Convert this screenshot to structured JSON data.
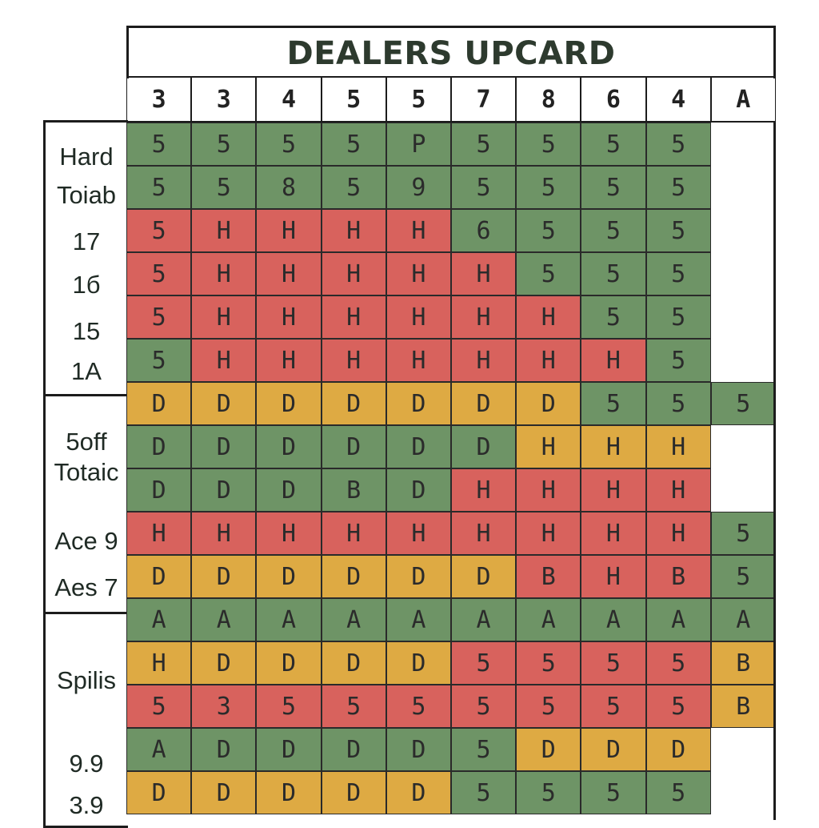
{
  "title": "DEALERS UPCARD",
  "columns": [
    "3",
    "3",
    "4",
    "5",
    "5",
    "7",
    "8",
    "6",
    "4",
    "A"
  ],
  "section_labels": {
    "hard_1": "Hard",
    "hard_2": "Toiab",
    "row_17": "17",
    "row_16": "1б",
    "row_15": "15",
    "row_1a": "1A",
    "soft_1": "5off",
    "soft_2": "Totaic",
    "ace9": "Ace 9",
    "ace7": "Aes 7",
    "splits": "Spilis",
    "p99": "9.9",
    "p39": "3.9"
  },
  "colors": {
    "green": "#6e9466",
    "red": "#d8625d",
    "yellow": "#deaa43"
  },
  "rows": [
    [
      [
        "g",
        "5"
      ],
      [
        "g",
        "5"
      ],
      [
        "g",
        "5"
      ],
      [
        "g",
        "5"
      ],
      [
        "g",
        "P"
      ],
      [
        "g",
        "5"
      ],
      [
        "g",
        "5"
      ],
      [
        "g",
        "5"
      ],
      [
        "g",
        "5"
      ],
      [
        "w",
        ""
      ]
    ],
    [
      [
        "g",
        "5"
      ],
      [
        "g",
        "5"
      ],
      [
        "g",
        "8"
      ],
      [
        "g",
        "5"
      ],
      [
        "g",
        "9"
      ],
      [
        "g",
        "5"
      ],
      [
        "g",
        "5"
      ],
      [
        "g",
        "5"
      ],
      [
        "g",
        "5"
      ],
      [
        "w",
        ""
      ]
    ],
    [
      [
        "r",
        "5"
      ],
      [
        "r",
        "H"
      ],
      [
        "r",
        "H"
      ],
      [
        "r",
        "H"
      ],
      [
        "r",
        "H"
      ],
      [
        "g",
        "6"
      ],
      [
        "g",
        "5"
      ],
      [
        "g",
        "5"
      ],
      [
        "g",
        "5"
      ],
      [
        "w",
        ""
      ]
    ],
    [
      [
        "r",
        "5"
      ],
      [
        "r",
        "H"
      ],
      [
        "r",
        "H"
      ],
      [
        "r",
        "H"
      ],
      [
        "r",
        "H"
      ],
      [
        "r",
        "H"
      ],
      [
        "g",
        "5"
      ],
      [
        "g",
        "5"
      ],
      [
        "g",
        "5"
      ],
      [
        "w",
        ""
      ]
    ],
    [
      [
        "r",
        "5"
      ],
      [
        "r",
        "H"
      ],
      [
        "r",
        "H"
      ],
      [
        "r",
        "H"
      ],
      [
        "r",
        "H"
      ],
      [
        "r",
        "H"
      ],
      [
        "r",
        "H"
      ],
      [
        "g",
        "5"
      ],
      [
        "g",
        "5"
      ],
      [
        "w",
        ""
      ]
    ],
    [
      [
        "g",
        "5"
      ],
      [
        "r",
        "H"
      ],
      [
        "r",
        "H"
      ],
      [
        "r",
        "H"
      ],
      [
        "r",
        "H"
      ],
      [
        "r",
        "H"
      ],
      [
        "r",
        "H"
      ],
      [
        "r",
        "H"
      ],
      [
        "g",
        "5"
      ],
      [
        "w",
        ""
      ]
    ],
    [
      [
        "y",
        "D"
      ],
      [
        "y",
        "D"
      ],
      [
        "y",
        "D"
      ],
      [
        "y",
        "D"
      ],
      [
        "y",
        "D"
      ],
      [
        "y",
        "D"
      ],
      [
        "y",
        "D"
      ],
      [
        "g",
        "5"
      ],
      [
        "g",
        "5"
      ],
      [
        "g",
        "5"
      ]
    ],
    [
      [
        "g",
        "D"
      ],
      [
        "g",
        "D"
      ],
      [
        "g",
        "D"
      ],
      [
        "g",
        "D"
      ],
      [
        "g",
        "D"
      ],
      [
        "g",
        "D"
      ],
      [
        "y",
        "H"
      ],
      [
        "y",
        "H"
      ],
      [
        "y",
        "H"
      ],
      [
        "w",
        ""
      ]
    ],
    [
      [
        "g",
        "D"
      ],
      [
        "g",
        "D"
      ],
      [
        "g",
        "D"
      ],
      [
        "g",
        "B"
      ],
      [
        "g",
        "D"
      ],
      [
        "r",
        "H"
      ],
      [
        "r",
        "H"
      ],
      [
        "r",
        "H"
      ],
      [
        "r",
        "H"
      ],
      [
        "w",
        ""
      ]
    ],
    [
      [
        "r",
        "H"
      ],
      [
        "r",
        "H"
      ],
      [
        "r",
        "H"
      ],
      [
        "r",
        "H"
      ],
      [
        "r",
        "H"
      ],
      [
        "r",
        "H"
      ],
      [
        "r",
        "H"
      ],
      [
        "r",
        "H"
      ],
      [
        "r",
        "H"
      ],
      [
        "g",
        "5"
      ]
    ],
    [
      [
        "y",
        "D"
      ],
      [
        "y",
        "D"
      ],
      [
        "y",
        "D"
      ],
      [
        "y",
        "D"
      ],
      [
        "y",
        "D"
      ],
      [
        "y",
        "D"
      ],
      [
        "r",
        "B"
      ],
      [
        "r",
        "H"
      ],
      [
        "r",
        "B"
      ],
      [
        "g",
        "5"
      ]
    ],
    [
      [
        "g",
        "A"
      ],
      [
        "g",
        "A"
      ],
      [
        "g",
        "A"
      ],
      [
        "g",
        "A"
      ],
      [
        "g",
        "A"
      ],
      [
        "g",
        "A"
      ],
      [
        "g",
        "A"
      ],
      [
        "g",
        "A"
      ],
      [
        "g",
        "A"
      ],
      [
        "g",
        "A"
      ]
    ],
    [
      [
        "y",
        "H"
      ],
      [
        "y",
        "D"
      ],
      [
        "y",
        "D"
      ],
      [
        "y",
        "D"
      ],
      [
        "y",
        "D"
      ],
      [
        "r",
        "5"
      ],
      [
        "r",
        "5"
      ],
      [
        "r",
        "5"
      ],
      [
        "r",
        "5"
      ],
      [
        "y",
        "B"
      ]
    ],
    [
      [
        "r",
        "5"
      ],
      [
        "r",
        "3"
      ],
      [
        "r",
        "5"
      ],
      [
        "r",
        "5"
      ],
      [
        "r",
        "5"
      ],
      [
        "r",
        "5"
      ],
      [
        "r",
        "5"
      ],
      [
        "r",
        "5"
      ],
      [
        "r",
        "5"
      ],
      [
        "y",
        "B"
      ]
    ],
    [
      [
        "g",
        "A"
      ],
      [
        "g",
        "D"
      ],
      [
        "g",
        "D"
      ],
      [
        "g",
        "D"
      ],
      [
        "g",
        "D"
      ],
      [
        "g",
        "5"
      ],
      [
        "y",
        "D"
      ],
      [
        "y",
        "D"
      ],
      [
        "y",
        "D"
      ],
      [
        "w",
        ""
      ]
    ],
    [
      [
        "y",
        "D"
      ],
      [
        "y",
        "D"
      ],
      [
        "y",
        "D"
      ],
      [
        "y",
        "D"
      ],
      [
        "y",
        "D"
      ],
      [
        "g",
        "5"
      ],
      [
        "g",
        "5"
      ],
      [
        "g",
        "5"
      ],
      [
        "g",
        "5"
      ],
      [
        "w",
        ""
      ]
    ]
  ]
}
